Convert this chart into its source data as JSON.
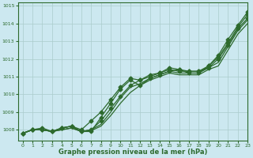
{
  "title": "Graphe pression niveau de la mer (hPa)",
  "bg_color": "#cce8f0",
  "grid_color": "#aacccc",
  "line_color": "#2d6a2d",
  "xlim": [
    -0.5,
    23
  ],
  "ylim": [
    1007.4,
    1015.2
  ],
  "yticks": [
    1008,
    1009,
    1010,
    1011,
    1012,
    1013,
    1014,
    1015
  ],
  "xticks": [
    0,
    1,
    2,
    3,
    4,
    5,
    6,
    7,
    8,
    9,
    10,
    11,
    12,
    13,
    14,
    15,
    16,
    17,
    18,
    19,
    20,
    21,
    22,
    23
  ],
  "series": [
    {
      "y": [
        1007.8,
        1008.0,
        1008.0,
        1007.9,
        1008.1,
        1008.2,
        1007.9,
        1007.9,
        1008.7,
        1009.5,
        1010.3,
        1010.8,
        1010.5,
        1010.9,
        1011.1,
        1011.3,
        1011.4,
        1011.2,
        1011.2,
        1011.6,
        1012.2,
        1013.1,
        1013.9,
        1014.65
      ],
      "marker": "D",
      "markersize": 2.5,
      "lw": 0.9
    },
    {
      "y": [
        1007.8,
        1008.0,
        1008.0,
        1007.9,
        1008.1,
        1008.2,
        1007.9,
        1008.0,
        1008.5,
        1009.2,
        1009.9,
        1010.5,
        1010.8,
        1011.0,
        1011.2,
        1011.4,
        1011.3,
        1011.3,
        1011.3,
        1011.5,
        1012.0,
        1012.8,
        1013.7,
        1014.3
      ],
      "marker": "D",
      "markersize": 2.5,
      "lw": 0.9
    },
    {
      "y": [
        1007.8,
        1008.0,
        1008.1,
        1007.9,
        1008.1,
        1008.2,
        1008.0,
        1008.5,
        1009.0,
        1009.7,
        1010.4,
        1010.9,
        1010.8,
        1011.1,
        1011.2,
        1011.5,
        1011.4,
        1011.3,
        1011.3,
        1011.6,
        1012.1,
        1012.9,
        1013.8,
        1014.5
      ],
      "marker": "D",
      "markersize": 2.5,
      "lw": 0.9
    },
    {
      "y": [
        1007.8,
        1008.0,
        1008.0,
        1007.9,
        1008.0,
        1008.1,
        1007.9,
        1008.0,
        1008.3,
        1009.0,
        1009.8,
        1010.4,
        1010.6,
        1010.9,
        1011.1,
        1011.3,
        1011.2,
        1011.2,
        1011.2,
        1011.5,
        1011.8,
        1012.7,
        1013.6,
        1014.2
      ],
      "marker": null,
      "markersize": 0,
      "lw": 0.9
    },
    {
      "y": [
        1007.8,
        1008.0,
        1008.0,
        1007.9,
        1008.0,
        1008.1,
        1007.9,
        1007.95,
        1008.2,
        1008.8,
        1009.5,
        1010.1,
        1010.5,
        1010.8,
        1011.0,
        1011.2,
        1011.1,
        1011.1,
        1011.1,
        1011.4,
        1011.6,
        1012.5,
        1013.4,
        1014.0
      ],
      "marker": null,
      "markersize": 0,
      "lw": 0.9
    }
  ]
}
